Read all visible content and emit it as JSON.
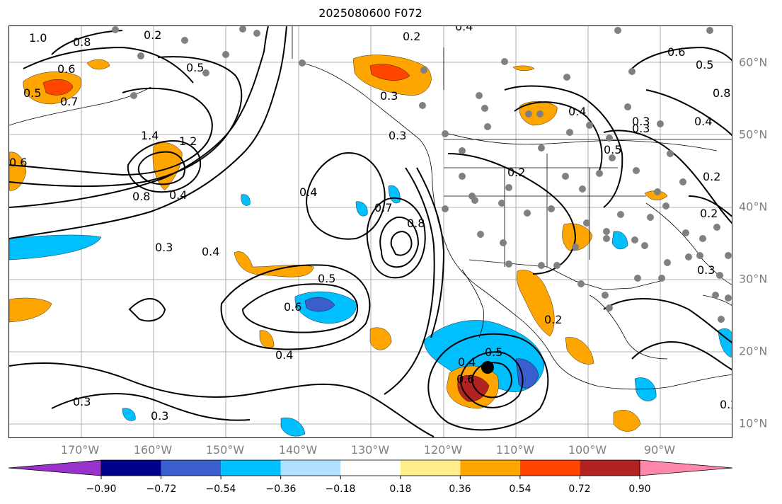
{
  "title": "2025080600 F072",
  "lon_labels": [
    "170°W",
    "160°W",
    "150°W",
    "140°W",
    "130°W",
    "120°W",
    "110°W",
    "100°W",
    "90°W"
  ],
  "lat_labels": [
    "60°N",
    "50°N",
    "40°N",
    "30°N",
    "20°N",
    "10°N"
  ],
  "colorbar": {
    "colors": [
      "#9932CC",
      "#00008B",
      "#3A5FCD",
      "#00BFFF",
      "#B0E2FF",
      "#FFFFFF",
      "#FFEC8B",
      "#FFA500",
      "#FF4500",
      "#B22222",
      "#FF88AA"
    ],
    "tick_labels": [
      "−0.90",
      "−0.72",
      "−0.54",
      "−0.36",
      "−0.18",
      "0.18",
      "0.36",
      "0.54",
      "0.72",
      "0.90"
    ]
  },
  "contour_labels": [
    "1.0",
    "0.8",
    "0.6",
    "0.5",
    "0.7",
    "1.4",
    "1.2",
    "0.6",
    "0.8",
    "0.4",
    "0.3",
    "0.2",
    "0.5",
    "0.4",
    "0.3",
    "0.4",
    "0.3",
    "0.4",
    "0.5",
    "0.6",
    "0.2",
    "0.4",
    "0.7",
    "0.8",
    "0.2",
    "0.4",
    "0.3",
    "0.5",
    "0.6",
    "0.5",
    "0.3",
    "0.2",
    "0.3",
    "0.2",
    "0.5",
    "0.4",
    "0.6",
    "0.8",
    "0.4",
    "0.3",
    "0.2",
    "0.3",
    "0.2"
  ],
  "contour_label_colors": {
    "line": "#000000",
    "fill_positive": "#FFA500",
    "fill_negative": "#00BFFF",
    "stations": "#808080"
  }
}
